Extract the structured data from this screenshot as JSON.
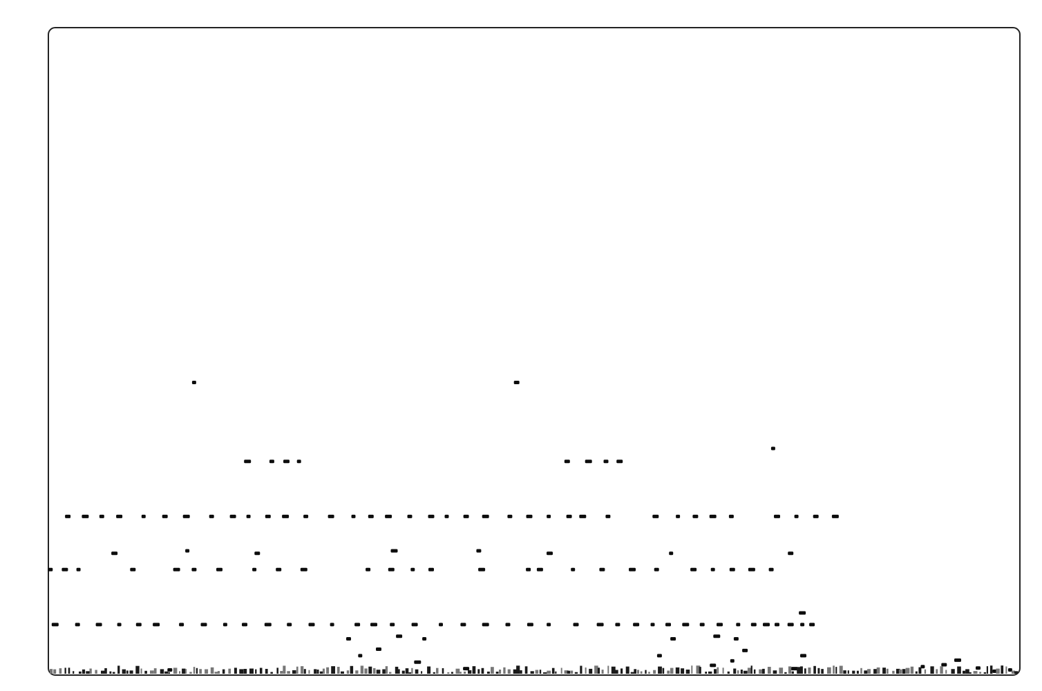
{
  "chart_data": {
    "type": "scatter",
    "title": "",
    "xlabel": "",
    "ylabel": "",
    "grid": false,
    "legend": "none",
    "colors": {
      "marker": "#0d0d0d",
      "frame": "#222222",
      "background": "#ffffff"
    },
    "xlim": [
      0,
      100
    ],
    "ylim": [
      0,
      100
    ],
    "series": [
      {
        "points": [
          [
            15.0,
            45.2
          ],
          [
            48.2,
            45.2
          ],
          [
            20.5,
            33.0
          ],
          [
            23.0,
            33.0
          ],
          [
            24.5,
            33.0
          ],
          [
            25.8,
            33.0
          ],
          [
            53.4,
            33.0
          ],
          [
            55.6,
            33.0
          ],
          [
            57.4,
            33.0
          ],
          [
            58.8,
            33.0
          ],
          [
            74.6,
            35.0
          ],
          [
            2.0,
            24.5
          ],
          [
            3.8,
            24.5
          ],
          [
            5.5,
            24.5
          ],
          [
            7.3,
            24.5
          ],
          [
            9.8,
            24.5
          ],
          [
            12.0,
            24.5
          ],
          [
            14.2,
            24.5
          ],
          [
            16.8,
            24.5
          ],
          [
            19.0,
            24.5
          ],
          [
            20.6,
            24.5
          ],
          [
            22.6,
            24.5
          ],
          [
            24.4,
            24.5
          ],
          [
            26.5,
            24.5
          ],
          [
            29.1,
            24.5
          ],
          [
            31.4,
            24.5
          ],
          [
            33.2,
            24.5
          ],
          [
            35.0,
            24.5
          ],
          [
            37.2,
            24.5
          ],
          [
            39.4,
            24.5
          ],
          [
            41.0,
            24.5
          ],
          [
            43.0,
            24.5
          ],
          [
            45.0,
            24.5
          ],
          [
            47.5,
            24.5
          ],
          [
            49.5,
            24.5
          ],
          [
            51.5,
            24.5
          ],
          [
            53.6,
            24.5
          ],
          [
            55.0,
            24.5
          ],
          [
            57.6,
            24.5
          ],
          [
            62.5,
            24.5
          ],
          [
            64.8,
            24.5
          ],
          [
            66.6,
            24.5
          ],
          [
            68.4,
            24.5
          ],
          [
            70.3,
            24.5
          ],
          [
            75.0,
            24.5
          ],
          [
            77.0,
            24.5
          ],
          [
            79.0,
            24.5
          ],
          [
            81.0,
            24.5
          ],
          [
            0.2,
            16.3
          ],
          [
            1.7,
            16.3
          ],
          [
            3.1,
            16.3
          ],
          [
            8.7,
            16.3
          ],
          [
            13.2,
            16.3
          ],
          [
            15.0,
            16.3
          ],
          [
            17.6,
            16.3
          ],
          [
            21.2,
            16.3
          ],
          [
            23.7,
            16.3
          ],
          [
            26.3,
            16.3
          ],
          [
            32.9,
            16.3
          ],
          [
            35.3,
            16.3
          ],
          [
            37.5,
            16.3
          ],
          [
            39.4,
            16.3
          ],
          [
            44.6,
            16.3
          ],
          [
            49.4,
            16.3
          ],
          [
            50.6,
            16.3
          ],
          [
            54.0,
            16.3
          ],
          [
            57.0,
            16.3
          ],
          [
            60.1,
            16.3
          ],
          [
            62.6,
            16.3
          ],
          [
            66.4,
            16.3
          ],
          [
            68.4,
            16.3
          ],
          [
            70.4,
            16.3
          ],
          [
            72.4,
            16.3
          ],
          [
            74.4,
            16.3
          ],
          [
            6.8,
            18.8
          ],
          [
            14.3,
            19.2
          ],
          [
            21.5,
            18.8
          ],
          [
            35.6,
            19.2
          ],
          [
            44.3,
            19.2
          ],
          [
            51.6,
            18.8
          ],
          [
            64.1,
            18.8
          ],
          [
            76.4,
            18.8
          ],
          [
            0.7,
            7.8
          ],
          [
            3.0,
            7.8
          ],
          [
            5.2,
            7.8
          ],
          [
            7.3,
            7.8
          ],
          [
            9.3,
            7.8
          ],
          [
            11.1,
            7.8
          ],
          [
            13.7,
            7.8
          ],
          [
            16.0,
            7.8
          ],
          [
            18.2,
            7.8
          ],
          [
            20.2,
            7.8
          ],
          [
            22.6,
            7.8
          ],
          [
            24.8,
            7.8
          ],
          [
            27.1,
            7.8
          ],
          [
            29.2,
            7.8
          ],
          [
            31.8,
            7.8
          ],
          [
            33.5,
            7.8
          ],
          [
            35.4,
            7.8
          ],
          [
            37.7,
            7.8
          ],
          [
            40.4,
            7.8
          ],
          [
            42.7,
            7.8
          ],
          [
            45.0,
            7.8
          ],
          [
            47.3,
            7.8
          ],
          [
            49.6,
            7.8
          ],
          [
            51.5,
            7.8
          ],
          [
            54.3,
            7.8
          ],
          [
            56.8,
            7.8
          ],
          [
            58.6,
            7.8
          ],
          [
            60.5,
            7.8
          ],
          [
            62.2,
            7.8
          ],
          [
            63.8,
            7.8
          ],
          [
            65.6,
            7.8
          ],
          [
            67.3,
            7.8
          ],
          [
            69.1,
            7.8
          ],
          [
            71.0,
            7.8
          ],
          [
            72.6,
            7.8
          ],
          [
            73.9,
            7.8
          ],
          [
            75.0,
            7.8
          ],
          [
            76.4,
            7.8
          ],
          [
            77.6,
            7.8
          ],
          [
            78.6,
            7.8
          ],
          [
            77.6,
            9.6
          ],
          [
            30.9,
            5.6
          ],
          [
            36.1,
            6.0
          ],
          [
            38.7,
            5.6
          ],
          [
            64.3,
            5.6
          ],
          [
            68.8,
            6.0
          ],
          [
            70.8,
            5.6
          ],
          [
            77.7,
            3.0
          ],
          [
            32.1,
            3.0
          ],
          [
            34.0,
            4.0
          ],
          [
            38.0,
            2.0
          ],
          [
            62.9,
            3.0
          ],
          [
            68.4,
            1.5
          ],
          [
            70.4,
            2.2
          ],
          [
            71.7,
            3.8
          ],
          [
            76.8,
            1.0
          ],
          [
            12.5,
            0.8
          ],
          [
            43.0,
            1.0
          ],
          [
            90.0,
            1.3
          ],
          [
            92.2,
            1.6
          ],
          [
            93.6,
            2.3
          ],
          [
            95.7,
            1.1
          ],
          [
            97.5,
            0.6
          ],
          [
            99.0,
            0.8
          ]
        ]
      }
    ]
  }
}
